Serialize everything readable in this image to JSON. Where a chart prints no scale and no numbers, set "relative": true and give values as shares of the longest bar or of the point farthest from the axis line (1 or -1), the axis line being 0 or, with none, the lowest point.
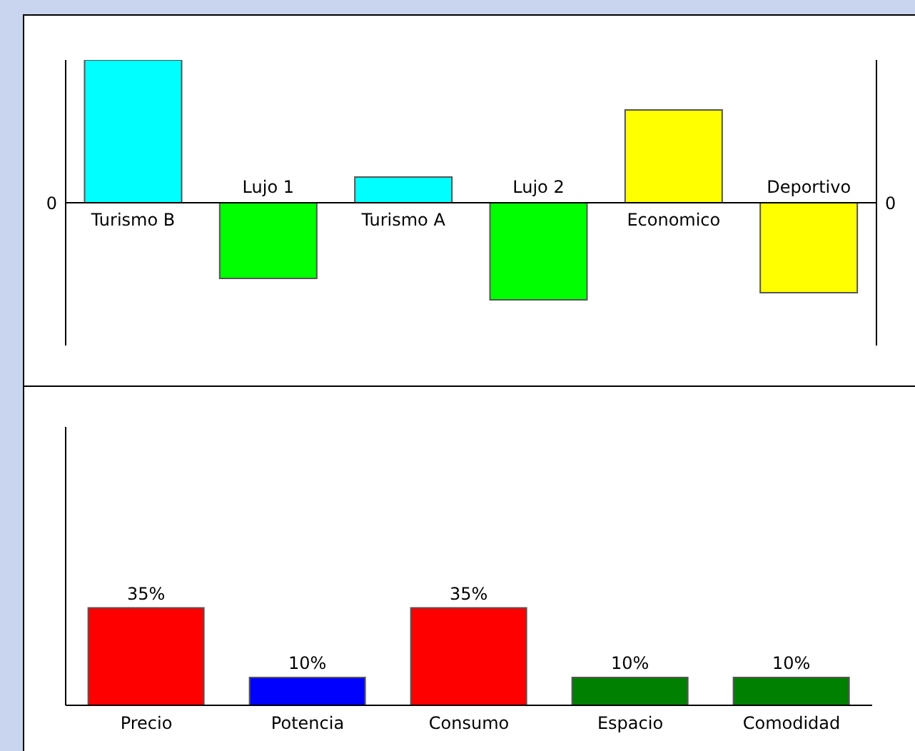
{
  "chart_data": [
    {
      "type": "bar",
      "relative": true,
      "categories": [
        "Turismo B",
        "Lujo 1",
        "Turismo A",
        "Lujo 2",
        "Economico",
        "Deportivo"
      ],
      "values": [
        1,
        -0.53,
        0.18,
        -0.68,
        0.65,
        -0.63
      ],
      "colors": [
        "#00ffff",
        "#00ff00",
        "#00ffff",
        "#00ff00",
        "#ffff00",
        "#ffff00"
      ],
      "annotations": [
        "0",
        "0"
      ],
      "grid": false,
      "legend": false
    },
    {
      "type": "bar",
      "categories": [
        "Precio",
        "Potencia",
        "Consumo",
        "Espacio",
        "Comodidad"
      ],
      "values": [
        35,
        10,
        35,
        10,
        10
      ],
      "value_labels": [
        "35%",
        "10%",
        "35%",
        "10%",
        "10%"
      ],
      "colors": [
        "#ff0000",
        "#0000ff",
        "#ff0000",
        "#008000",
        "#008000"
      ],
      "ylim": [
        0,
        100
      ],
      "tick_labels": "x",
      "grid": false,
      "legend": false
    }
  ]
}
